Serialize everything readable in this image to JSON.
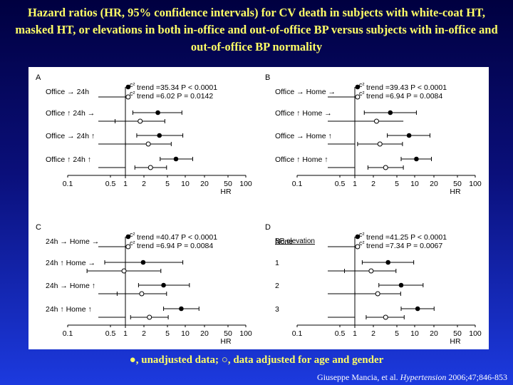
{
  "title": "Hazard ratios (HR, 95% confidence intervals) for CV death in subjects with white-coat HT, masked HT, or elevations in both in-office and out-of-office BP versus subjects with in-office and out-of-office BP normality",
  "caption": {
    "filled_text": ", unadjusted data;",
    "open_text": ", data adjusted for age and gender"
  },
  "citation": {
    "authors": "Giuseppe Mancia, et al.",
    "journal": "Hypertension",
    "details": "2006;47;846-853"
  },
  "colors": {
    "title": "#ffff66",
    "caption": "#ffff66",
    "citation": "#ffffff",
    "plot_ink": "#000000",
    "plot_bg": "#ffffff"
  },
  "chart_data": [
    {
      "type": "forest",
      "panel": "A",
      "xscale": "log",
      "xticks": [
        "0.1",
        "0.5",
        "1",
        "2",
        "5",
        "10",
        "20",
        "50",
        "100"
      ],
      "xlim": [
        0.1,
        100
      ],
      "xlabel": "HR",
      "reference_line": 1,
      "header": "",
      "trend_stats": [
        {
          "symbol": "c²",
          "label": "trend",
          "stat": "=35.34",
          "p": "P < 0.0001"
        },
        {
          "symbol": "c²",
          "label": "trend",
          "stat": "=6.02",
          "p": "P = 0.0142"
        }
      ],
      "rows": [
        {
          "label": "Office → 24h",
          "ref_row": true,
          "unadjusted": {
            "hr": 1,
            "lo": 1,
            "hi": 1
          },
          "adjusted": {
            "hr": 1,
            "lo": 1,
            "hi": 1
          }
        },
        {
          "label": "Office ↑ 24h →",
          "unadjusted": {
            "hr": 3.2,
            "lo": 1.2,
            "hi": 8.2
          },
          "adjusted": {
            "hr": 1.6,
            "lo": 0.6,
            "hi": 4.2
          }
        },
        {
          "label": "Office → 24h ↑",
          "unadjusted": {
            "hr": 3.4,
            "lo": 1.4,
            "hi": 8.5
          },
          "adjusted": {
            "hr": 2.2,
            "lo": 0.9,
            "hi": 5.4
          }
        },
        {
          "label": "Office ↑ 24h ↑",
          "unadjusted": {
            "hr": 6.5,
            "lo": 3.5,
            "hi": 12.5
          },
          "adjusted": {
            "hr": 2.4,
            "lo": 1.3,
            "hi": 4.5
          }
        }
      ]
    },
    {
      "type": "forest",
      "panel": "B",
      "xscale": "log",
      "xticks": [
        "0.1",
        "0.5",
        "1",
        "2",
        "5",
        "10",
        "20",
        "50",
        "100"
      ],
      "xlim": [
        0.1,
        100
      ],
      "xlabel": "HR",
      "reference_line": 1,
      "header": "",
      "trend_stats": [
        {
          "symbol": "c²",
          "label": "trend",
          "stat": "=39.43",
          "p": "P < 0.0001"
        },
        {
          "symbol": "c²",
          "label": "trend",
          "stat": "=6.94",
          "p": "P = 0.0084"
        }
      ],
      "rows": [
        {
          "label": "Office → Home →",
          "ref_row": true,
          "unadjusted": {
            "hr": 1,
            "lo": 1,
            "hi": 1
          },
          "adjusted": {
            "hr": 1,
            "lo": 1,
            "hi": 1
          }
        },
        {
          "label": "Office ↑ Home →",
          "unadjusted": {
            "hr": 3.6,
            "lo": 1.3,
            "hi": 10
          }
        },
        {
          "label": "Office → Home ↑",
          "unadjusted": {
            "hr": 7.5,
            "lo": 3.2,
            "hi": 17
          },
          "adjusted": {
            "hr": 2.4,
            "lo": 1.0,
            "hi": 5.8
          }
        },
        {
          "label": "Office ↑ Home ↑",
          "unadjusted": {
            "hr": 10,
            "lo": 5.5,
            "hi": 18
          },
          "adjusted": {
            "hr": 3.0,
            "lo": 1.5,
            "hi": 6.0
          }
        }
      ],
      "extra_adjusted": [
        {
          "row": 1,
          "hr": 2.1,
          "lo": 0.7,
          "hi": 6.0
        }
      ]
    },
    {
      "type": "forest",
      "panel": "C",
      "xscale": "log",
      "xticks": [
        "0.1",
        "0.5",
        "1",
        "2",
        "5",
        "10",
        "20",
        "50",
        "100"
      ],
      "xlim": [
        0.1,
        100
      ],
      "xlabel": "HR",
      "reference_line": 1,
      "header": "",
      "trend_stats": [
        {
          "symbol": "c²",
          "label": "trend",
          "stat": "=40.47",
          "p": "P < 0.0001"
        },
        {
          "symbol": "c²",
          "label": "trend",
          "stat": "=6.94",
          "p": "P = 0.0084"
        }
      ],
      "rows": [
        {
          "label": "24h → Home →",
          "ref_row": true,
          "unadjusted": {
            "hr": 1,
            "lo": 1,
            "hi": 1
          },
          "adjusted": {
            "hr": 1,
            "lo": 1,
            "hi": 1
          }
        },
        {
          "label": "24h ↑ Home →",
          "unadjusted": {
            "hr": 1.8,
            "lo": 0.4,
            "hi": 8.5
          },
          "adjusted": {
            "hr": 0.85,
            "lo": 0.2,
            "hi": 3.6
          }
        },
        {
          "label": "24h → Home ↑",
          "unadjusted": {
            "hr": 4.0,
            "lo": 1.5,
            "hi": 11
          },
          "adjusted": {
            "hr": 1.7,
            "lo": 0.65,
            "hi": 4.5
          }
        },
        {
          "label": "24h ↑ Home ↑",
          "unadjusted": {
            "hr": 8.0,
            "lo": 4.0,
            "hi": 16
          },
          "adjusted": {
            "hr": 2.3,
            "lo": 1.1,
            "hi": 4.8
          }
        }
      ]
    },
    {
      "type": "forest",
      "panel": "D",
      "xscale": "log",
      "xticks": [
        "0.1",
        "0.5",
        "1",
        "2",
        "5",
        "10",
        "20",
        "50",
        "100"
      ],
      "xlim": [
        0.1,
        100
      ],
      "xlabel": "HR",
      "reference_line": 1,
      "header": "BP elevation",
      "trend_stats": [
        {
          "symbol": "c²",
          "label": "trend",
          "stat": "=41.25",
          "p": "P < 0.0001"
        },
        {
          "symbol": "c²",
          "label": "trend",
          "stat": "=7.34",
          "p": "P = 0.0067"
        }
      ],
      "rows": [
        {
          "label": "None",
          "ref_row": true,
          "unadjusted": {
            "hr": 1,
            "lo": 1,
            "hi": 1
          },
          "adjusted": {
            "hr": 1,
            "lo": 1,
            "hi": 1
          }
        },
        {
          "label": "1",
          "unadjusted": {
            "hr": 3.3,
            "lo": 1.2,
            "hi": 9.0
          },
          "adjusted": {
            "hr": 1.7,
            "lo": 0.6,
            "hi": 4.5
          }
        },
        {
          "label": "2",
          "unadjusted": {
            "hr": 5.5,
            "lo": 2.3,
            "hi": 13
          },
          "adjusted": {
            "hr": 2.2,
            "lo": 0.9,
            "hi": 5.4
          }
        },
        {
          "label": "3",
          "unadjusted": {
            "hr": 10.5,
            "lo": 5.5,
            "hi": 20
          },
          "adjusted": {
            "hr": 3.0,
            "lo": 1.4,
            "hi": 6.2
          }
        }
      ]
    }
  ]
}
